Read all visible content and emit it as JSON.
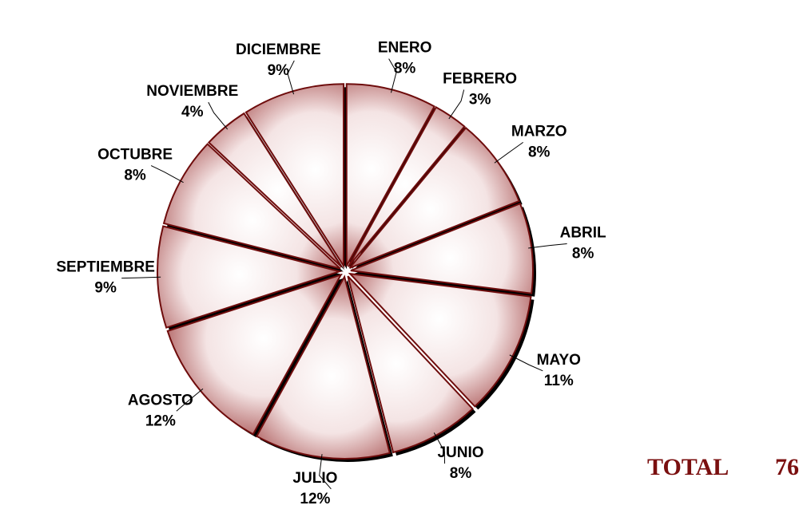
{
  "chart_data": {
    "type": "pie",
    "categories": [
      "ENERO",
      "FEBRERO",
      "MARZO",
      "ABRIL",
      "MAYO",
      "JUNIO",
      "JULIO",
      "AGOSTO",
      "SEPTIEMBRE",
      "OCTUBRE",
      "NOVIEMBRE",
      "DICIEMBRE"
    ],
    "values": [
      8,
      3,
      8,
      8,
      11,
      8,
      12,
      12,
      9,
      8,
      4,
      9
    ],
    "value_labels": [
      "8%",
      "3%",
      "8%",
      "8%",
      "11%",
      "8%",
      "12%",
      "12%",
      "9%",
      "8%",
      "4%",
      "9%"
    ],
    "color": "#8b1a1a",
    "total_label": "TOTAL",
    "total": 76
  }
}
